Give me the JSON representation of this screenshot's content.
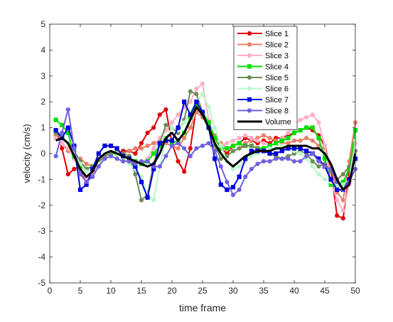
{
  "chart_data": {
    "type": "line",
    "title": "",
    "xlabel": "time frame",
    "ylabel": "velocity (cm/s)",
    "xlim": [
      0,
      50
    ],
    "ylim": [
      -5,
      5
    ],
    "xticks": [
      0,
      5,
      10,
      15,
      20,
      25,
      30,
      35,
      40,
      45,
      50
    ],
    "yticks": [
      -5,
      -4,
      -3,
      -2,
      -1,
      0,
      1,
      2,
      3,
      4,
      5
    ],
    "grid": false,
    "legend_position": "top-right",
    "x": [
      1,
      2,
      3,
      4,
      5,
      6,
      7,
      8,
      9,
      10,
      11,
      12,
      13,
      14,
      15,
      16,
      17,
      18,
      19,
      20,
      21,
      22,
      23,
      24,
      25,
      26,
      27,
      28,
      29,
      30,
      31,
      32,
      33,
      34,
      35,
      36,
      37,
      38,
      39,
      40,
      41,
      42,
      43,
      44,
      45,
      46,
      47,
      48,
      49,
      50
    ],
    "series": [
      {
        "name": "Slice 1",
        "color": "#e00000",
        "marker": "circle",
        "values": [
          0.9,
          0.2,
          -0.8,
          -0.6,
          -0.5,
          -1.2,
          -0.7,
          -0.3,
          -0.1,
          0.0,
          0.0,
          0.1,
          0.1,
          0.0,
          0.4,
          0.8,
          1.0,
          1.5,
          1.7,
          0.4,
          -0.3,
          -0.7,
          0.2,
          1.8,
          1.5,
          1.2,
          0.6,
          0.2,
          0.0,
          0.3,
          0.4,
          0.6,
          0.5,
          0.4,
          0.5,
          0.4,
          0.6,
          0.6,
          0.7,
          0.8,
          0.9,
          1.0,
          0.9,
          0.7,
          0.3,
          -0.6,
          -2.4,
          -2.5,
          -0.8,
          0.9
        ]
      },
      {
        "name": "Slice 2",
        "color": "#e8806a",
        "marker": "circle",
        "values": [
          0.7,
          0.4,
          0.1,
          -0.1,
          -0.2,
          -0.4,
          -0.5,
          -0.3,
          -0.2,
          -0.1,
          0.0,
          0.0,
          0.1,
          0.2,
          0.2,
          0.3,
          0.4,
          0.5,
          0.4,
          0.3,
          0.2,
          0.6,
          1.0,
          1.6,
          1.4,
          1.1,
          0.7,
          0.4,
          0.2,
          0.1,
          0.2,
          0.4,
          0.5,
          0.6,
          0.7,
          0.6,
          0.5,
          0.4,
          0.4,
          0.5,
          0.5,
          0.6,
          0.5,
          0.3,
          0.2,
          -0.5,
          -1.5,
          -1.8,
          -0.3,
          1.2
        ]
      },
      {
        "name": "Slice 3",
        "color": "#ffb0c8",
        "marker": "circle",
        "values": [
          0.6,
          0.4,
          0.2,
          -0.2,
          -0.6,
          -1.0,
          -0.8,
          -0.4,
          -0.2,
          -0.1,
          0.0,
          -0.1,
          -0.2,
          -0.3,
          -0.4,
          -0.2,
          0.2,
          0.6,
          0.9,
          1.2,
          1.5,
          1.8,
          2.0,
          2.5,
          2.7,
          1.3,
          0.2,
          0.3,
          0.4,
          0.5,
          0.6,
          0.7,
          0.6,
          0.5,
          0.4,
          0.3,
          0.4,
          0.6,
          0.8,
          1.1,
          1.3,
          1.4,
          1.5,
          1.2,
          0.3,
          -1.1,
          -1.8,
          -2.2,
          -1.2,
          0.4
        ]
      },
      {
        "name": "Slice 4",
        "color": "#00dd00",
        "marker": "square",
        "values": [
          1.3,
          1.1,
          0.8,
          -0.1,
          -0.5,
          -0.6,
          -0.5,
          -0.3,
          -0.1,
          0.0,
          0.0,
          -0.1,
          -0.2,
          -0.3,
          -0.4,
          -0.3,
          0.0,
          0.3,
          0.6,
          0.4,
          0.5,
          0.8,
          1.4,
          1.9,
          1.6,
          1.2,
          0.6,
          0.2,
          0.2,
          0.3,
          0.4,
          0.3,
          0.3,
          0.2,
          0.2,
          0.3,
          0.4,
          0.5,
          0.6,
          0.8,
          0.9,
          1.0,
          1.0,
          0.6,
          -0.2,
          -1.2,
          -1.3,
          -1.1,
          -0.6,
          0.9
        ]
      },
      {
        "name": "Slice 5",
        "color": "#6e8c58",
        "marker": "circle",
        "values": [
          0.8,
          0.6,
          0.4,
          0.1,
          -0.3,
          -0.6,
          -0.5,
          -0.3,
          -0.1,
          0.0,
          0.1,
          0.0,
          -0.1,
          -0.8,
          -1.8,
          -1.6,
          -0.4,
          0.4,
          1.1,
          1.0,
          0.8,
          1.3,
          2.4,
          2.3,
          1.6,
          1.0,
          0.3,
          -0.2,
          -0.1,
          0.1,
          0.2,
          0.3,
          0.3,
          0.2,
          0.1,
          0.0,
          -0.1,
          -0.2,
          -0.1,
          0.0,
          0.1,
          0.0,
          -0.3,
          -0.5,
          -0.4,
          -0.7,
          -1.0,
          -0.8,
          -0.5,
          0.1
        ]
      },
      {
        "name": "Slice 6",
        "color": "#b8f8c8",
        "marker": "circle",
        "values": [
          0.9,
          0.7,
          0.4,
          0.0,
          -0.4,
          -0.7,
          -0.6,
          -0.4,
          -0.2,
          -0.1,
          0.0,
          -0.2,
          -0.4,
          -0.6,
          -0.9,
          -1.6,
          -1.8,
          -0.5,
          0.6,
          1.0,
          0.9,
          1.2,
          1.6,
          2.0,
          2.3,
          1.8,
          1.0,
          0.3,
          -0.3,
          -0.6,
          -0.5,
          -0.3,
          -0.1,
          0.0,
          0.1,
          0.2,
          0.2,
          0.3,
          0.2,
          0.1,
          0.0,
          -0.2,
          -0.5,
          -0.8,
          -1.0,
          -1.1,
          -1.3,
          -1.2,
          -1.0,
          0.5
        ]
      },
      {
        "name": "Slice 7",
        "color": "#0000e0",
        "marker": "square",
        "values": [
          0.9,
          0.6,
          1.0,
          0.3,
          -1.4,
          -1.2,
          -0.6,
          0.0,
          0.3,
          0.3,
          0.2,
          -0.1,
          -0.2,
          -0.5,
          -1.1,
          -1.7,
          -0.6,
          0.4,
          0.5,
          0.5,
          1.0,
          2.0,
          1.5,
          2.0,
          1.6,
          1.0,
          -0.2,
          -1.2,
          -1.4,
          -1.3,
          -0.9,
          -0.2,
          0.1,
          0.1,
          0.1,
          0.0,
          0.0,
          0.1,
          0.2,
          0.2,
          0.2,
          0.1,
          0.0,
          -0.2,
          -0.5,
          -1.0,
          -1.4,
          -1.4,
          -1.0,
          -0.2
        ]
      },
      {
        "name": "Slice 8",
        "color": "#7060e0",
        "marker": "circle",
        "values": [
          -0.1,
          0.8,
          1.7,
          0.2,
          -0.8,
          -1.1,
          -0.9,
          -0.5,
          -0.2,
          -0.1,
          -0.2,
          -0.3,
          -0.3,
          -0.4,
          -0.3,
          -0.3,
          -0.5,
          -0.5,
          -0.1,
          0.3,
          0.4,
          0.2,
          -0.1,
          0.2,
          0.3,
          0.4,
          0.1,
          -0.5,
          -1.1,
          -1.6,
          -1.4,
          -0.9,
          -0.6,
          -0.4,
          -0.3,
          -0.3,
          -0.2,
          -0.2,
          -0.2,
          -0.3,
          -0.3,
          -0.1,
          0.0,
          -0.3,
          -0.5,
          -0.6,
          -1.1,
          -1.4,
          -1.1,
          -0.6
        ]
      },
      {
        "name": "Volume",
        "color": "#000000",
        "marker": "none",
        "values": [
          0.5,
          0.6,
          0.4,
          -0.1,
          -0.6,
          -0.9,
          -0.7,
          -0.2,
          0.0,
          0.1,
          0.0,
          -0.1,
          -0.2,
          -0.3,
          -0.4,
          -0.5,
          -0.4,
          0.0,
          0.6,
          0.8,
          0.5,
          0.8,
          1.3,
          1.8,
          1.5,
          1.0,
          0.4,
          0.0,
          -0.3,
          -0.5,
          -0.3,
          -0.1,
          0.0,
          0.1,
          0.1,
          0.1,
          0.2,
          0.2,
          0.3,
          0.3,
          0.3,
          0.3,
          0.2,
          0.2,
          0.0,
          -0.4,
          -1.0,
          -1.4,
          -1.2,
          0.0
        ]
      }
    ]
  }
}
